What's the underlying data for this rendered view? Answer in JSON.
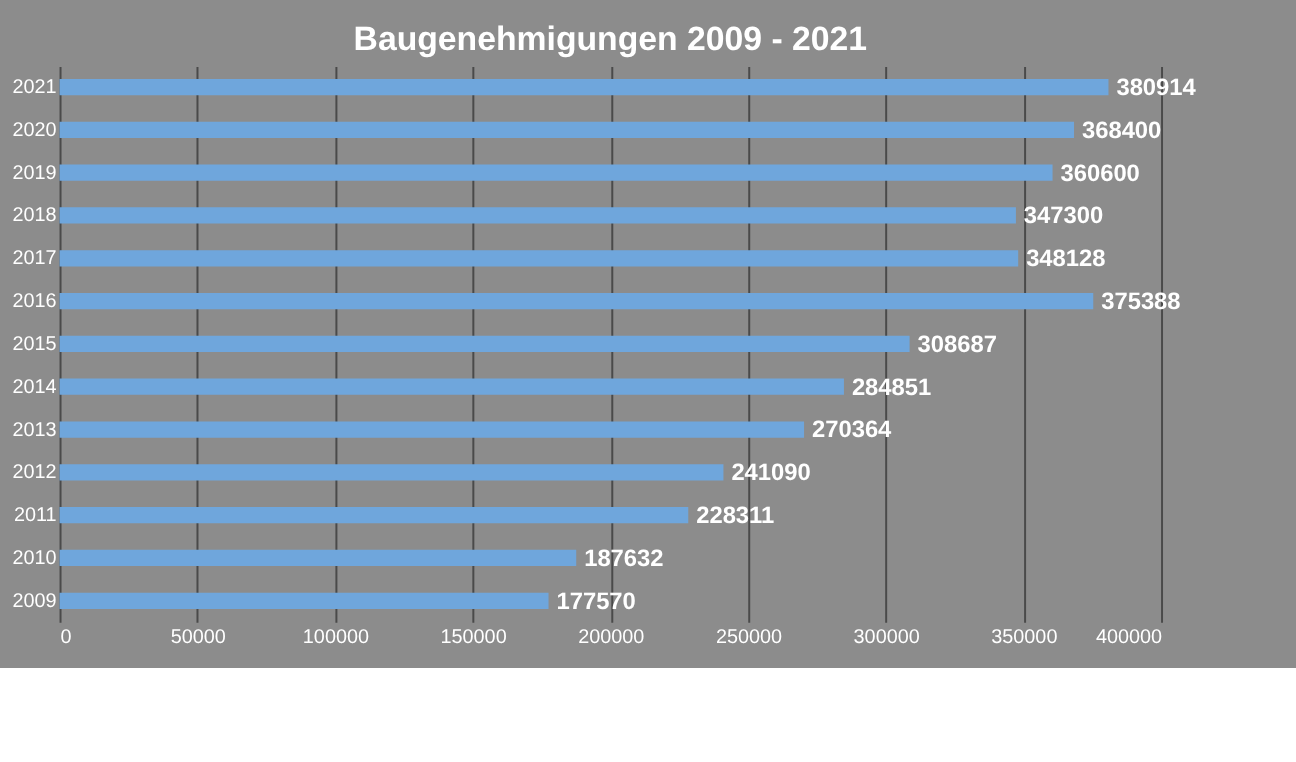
{
  "chart_data": {
    "type": "bar",
    "title": "Baugenehmigungen 2009 - 2021",
    "orientation": "horizontal",
    "categories": [
      "2021",
      "2020",
      "2019",
      "2018",
      "2017",
      "2016",
      "2015",
      "2014",
      "2013",
      "2012",
      "2011",
      "2010",
      "2009"
    ],
    "values": [
      380914,
      368400,
      360600,
      347300,
      348128,
      375388,
      308687,
      284851,
      270364,
      241090,
      228311,
      187632,
      177570
    ],
    "color": "#6fa6dc",
    "data_labels": true,
    "xlim": [
      0,
      400000
    ],
    "xticks": [
      0,
      50000,
      100000,
      150000,
      200000,
      250000,
      300000,
      350000,
      400000
    ],
    "grid": "x"
  }
}
